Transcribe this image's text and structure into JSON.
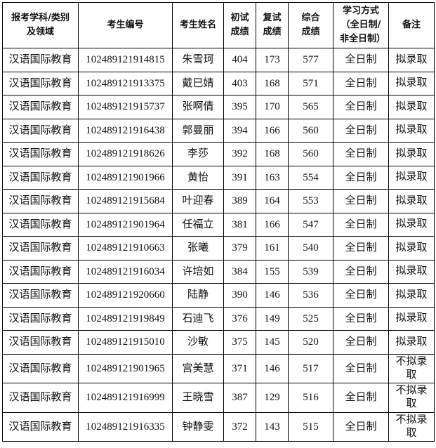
{
  "headers": [
    "报考学科/类别及领域",
    "考生编号",
    "考生姓名",
    "初试成绩",
    "复试成绩",
    "综合成绩",
    "学习方式（全日制/非全日制）",
    "备注"
  ],
  "rows": [
    [
      "汉语国际教育",
      "102489121914815",
      "朱雪珂",
      "404",
      "173",
      "577",
      "全日制",
      "拟录取"
    ],
    [
      "汉语国际教育",
      "102489121913375",
      "戴巳婧",
      "403",
      "168",
      "571",
      "全日制",
      "拟录取"
    ],
    [
      "汉语国际教育",
      "102489121915737",
      "张啊倩",
      "395",
      "170",
      "565",
      "全日制",
      "拟录取"
    ],
    [
      "汉语国际教育",
      "102489121916438",
      "郭曼丽",
      "394",
      "166",
      "560",
      "全日制",
      "拟录取"
    ],
    [
      "汉语国际教育",
      "102489121918626",
      "李莎",
      "392",
      "168",
      "560",
      "全日制",
      "拟录取"
    ],
    [
      "汉语国际教育",
      "102489121901966",
      "黄怡",
      "391",
      "163",
      "554",
      "全日制",
      "拟录取"
    ],
    [
      "汉语国际教育",
      "102489121915684",
      "叶迎春",
      "389",
      "164",
      "553",
      "全日制",
      "拟录取"
    ],
    [
      "汉语国际教育",
      "102489121901964",
      "任福立",
      "381",
      "166",
      "547",
      "全日制",
      "拟录取"
    ],
    [
      "汉语国际教育",
      "102489121910663",
      "张曦",
      "379",
      "161",
      "540",
      "全日制",
      "拟录取"
    ],
    [
      "汉语国际教育",
      "102489121916034",
      "许培如",
      "384",
      "155",
      "539",
      "全日制",
      "拟录取"
    ],
    [
      "汉语国际教育",
      "102489121920660",
      "陆静",
      "390",
      "146",
      "536",
      "全日制",
      "拟录取"
    ],
    [
      "汉语国际教育",
      "102489121919849",
      "石迪飞",
      "376",
      "149",
      "525",
      "全日制",
      "拟录取"
    ],
    [
      "汉语国际教育",
      "102489121915010",
      "沙敏",
      "375",
      "145",
      "520",
      "全日制",
      "拟录取"
    ],
    [
      "汉语国际教育",
      "102489121901965",
      "宫美慧",
      "371",
      "146",
      "517",
      "全日制",
      "不拟录取"
    ],
    [
      "汉语国际教育",
      "102489121916999",
      "王晓雪",
      "387",
      "129",
      "516",
      "全日制",
      "不拟录取"
    ],
    [
      "汉语国际教育",
      "102489121916335",
      "钟静雯",
      "372",
      "143",
      "515",
      "全日制",
      "不拟录取"
    ]
  ]
}
